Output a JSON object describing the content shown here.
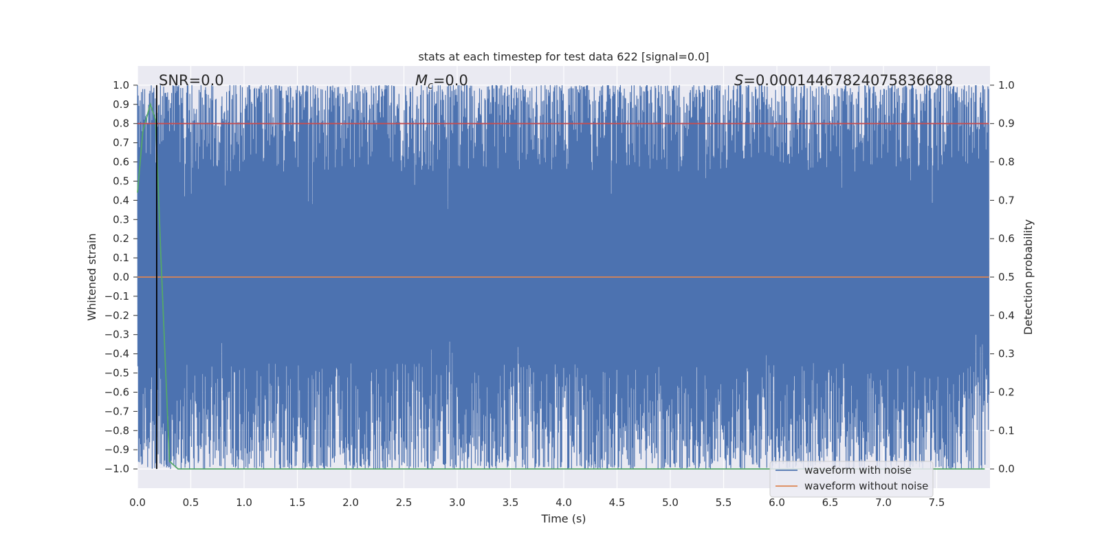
{
  "chart_data": {
    "type": "line",
    "title": "stats at each timestep for test data 622 [signal=0.0]",
    "xlabel": "Time (s)",
    "ylabel": "Whitened strain",
    "ylabel_right": "Detection probability",
    "xlim": [
      0.0,
      8.0
    ],
    "ylim": [
      -1.1,
      1.1
    ],
    "ylim_right": [
      -0.05,
      1.05
    ],
    "x_ticks": [
      "0.0",
      "0.5",
      "1.0",
      "1.5",
      "2.0",
      "2.5",
      "3.0",
      "3.5",
      "4.0",
      "4.5",
      "5.0",
      "5.5",
      "6.0",
      "6.5",
      "7.0",
      "7.5"
    ],
    "y_ticks": [
      "1.0",
      "0.9",
      "0.8",
      "0.7",
      "0.6",
      "0.5",
      "0.4",
      "0.3",
      "0.2",
      "0.1",
      "0.0",
      "−0.1",
      "−0.2",
      "−0.3",
      "−0.4",
      "−0.5",
      "−0.6",
      "−0.7",
      "−0.8",
      "−0.9",
      "−1.0"
    ],
    "y_ticks_right": [
      "1.0",
      "0.9",
      "0.8",
      "0.7",
      "0.6",
      "0.5",
      "0.4",
      "0.3",
      "0.2",
      "0.1",
      "0.0"
    ],
    "grid": true,
    "legend_position": "lower-right",
    "series": [
      {
        "name": "waveform with noise",
        "color": "#4c72b0",
        "axis": "left",
        "description_range": [
          -1.0,
          1.0
        ],
        "x_range": [
          0.0,
          7.99
        ]
      },
      {
        "name": "waveform without noise",
        "color": "#dd8452",
        "axis": "left",
        "x": [
          0.0,
          7.99
        ],
        "y": [
          0.0,
          0.0
        ]
      },
      {
        "color": "#55a868",
        "axis": "right",
        "x": [
          0.0,
          0.05,
          0.12,
          0.17,
          0.22,
          0.3,
          0.38,
          0.5,
          1.0,
          2.0,
          3.0,
          4.0,
          5.0,
          6.0,
          7.0,
          7.95
        ],
        "y": [
          0.72,
          0.88,
          0.95,
          0.91,
          0.55,
          0.02,
          0.0,
          0.0,
          0.0,
          0.0,
          0.0,
          0.0,
          0.0,
          0.0,
          0.0,
          0.0
        ]
      },
      {
        "color": "#c44e52",
        "axis": "right",
        "x": [
          0.0,
          7.99
        ],
        "y": [
          0.9,
          0.9
        ]
      }
    ],
    "vertical_line": {
      "x": 0.18,
      "color": "#000000"
    },
    "annotations": {
      "snr": "SNR=0.0",
      "mc_symbol": "M",
      "mc_sub": "c",
      "mc_value": "=0.0",
      "s_symbol": "S",
      "s_value": "=0.00014467824075836688"
    },
    "legend": [
      {
        "label": "waveform with noise",
        "color": "#4c72b0"
      },
      {
        "label": "waveform without noise",
        "color": "#dd8452"
      }
    ],
    "colors": {
      "plot_background": "#eaeaf2",
      "grid": "#ffffff"
    }
  }
}
